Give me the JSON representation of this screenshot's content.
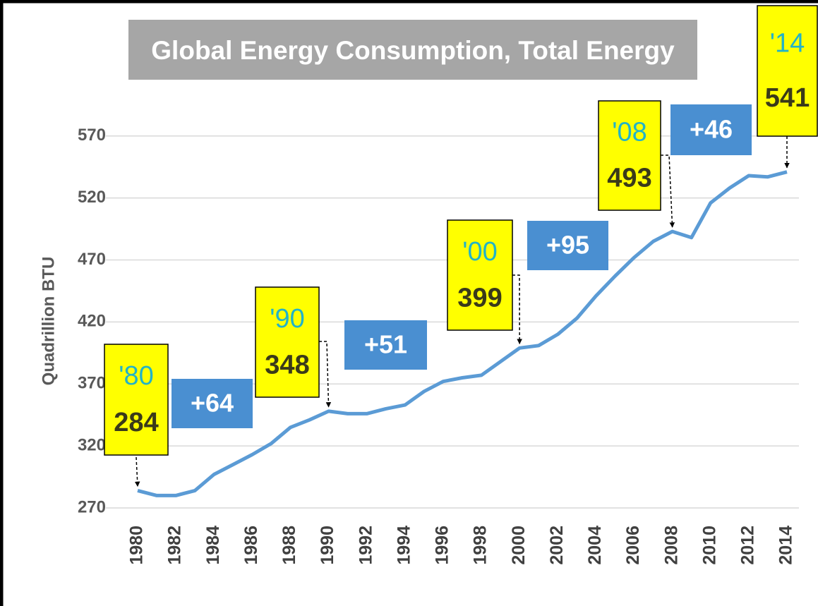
{
  "chart_data": {
    "type": "line",
    "title": "Global Energy Consumption, Total Energy",
    "y_label": "Quadrillion BTU",
    "x": [
      1980,
      1981,
      1982,
      1983,
      1984,
      1985,
      1986,
      1987,
      1988,
      1989,
      1990,
      1991,
      1992,
      1993,
      1994,
      1995,
      1996,
      1997,
      1998,
      1999,
      2000,
      2001,
      2002,
      2003,
      2004,
      2005,
      2006,
      2007,
      2008,
      2009,
      2010,
      2011,
      2012,
      2013,
      2014
    ],
    "values": [
      284,
      280,
      280,
      284,
      297,
      305,
      313,
      322,
      335,
      341,
      348,
      346,
      346,
      350,
      353,
      364,
      372,
      375,
      377,
      388,
      399,
      401,
      410,
      423,
      441,
      457,
      472,
      485,
      493,
      488,
      516,
      528,
      538,
      537,
      541
    ],
    "color": "#5b9bd5",
    "xlim": [
      1980,
      2014
    ],
    "xticks": [
      1980,
      1982,
      1984,
      1986,
      1988,
      1990,
      1992,
      1994,
      1996,
      1998,
      2000,
      2002,
      2004,
      2006,
      2008,
      2010,
      2012,
      2014
    ],
    "ylim": [
      270,
      600
    ],
    "yticks": [
      270,
      320,
      370,
      420,
      470,
      520,
      570
    ],
    "grid": true,
    "callouts": [
      {
        "x": 1980,
        "label": "'80",
        "value": 284
      },
      {
        "x": 1990,
        "label": "'90",
        "value": 348
      },
      {
        "x": 2000,
        "label": "'00",
        "value": 399
      },
      {
        "x": 2008,
        "label": "'08",
        "value": 493
      },
      {
        "x": 2014,
        "label": "'14",
        "value": 541
      }
    ],
    "changes": [
      {
        "value": 64,
        "label": "+64"
      },
      {
        "value": 51,
        "label": "+51"
      },
      {
        "value": 95,
        "label": "+95"
      },
      {
        "value": 46,
        "label": "+46"
      }
    ]
  }
}
